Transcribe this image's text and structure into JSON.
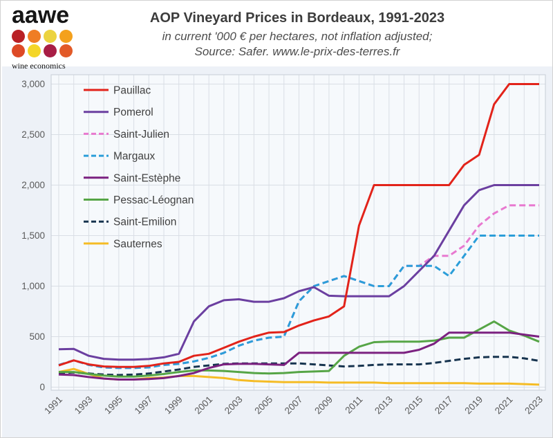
{
  "logo": {
    "text": "aawe",
    "tagline": "wine economics",
    "dot_colors": [
      [
        "#b92025",
        "#ef7d25",
        "#ecd33f",
        "#f4a11d"
      ],
      [
        "#dd4a26",
        "#f4d628",
        "#a81e45",
        "#e25a28"
      ]
    ]
  },
  "header": {
    "title": "AOP Vineyard Prices in Bordeaux, 1991-2023",
    "subtitle_line1": "in current '000 € per hectares, not inflation adjusted;",
    "subtitle_line2": "Source: Safer. www.le-prix-des-terres.fr"
  },
  "chart_data": {
    "type": "line",
    "title": "AOP Vineyard Prices in Bordeaux, 1991-2023",
    "unit": "'000 € per hectare",
    "x": [
      1991,
      1992,
      1993,
      1994,
      1995,
      1996,
      1997,
      1998,
      1999,
      2000,
      2001,
      2002,
      2003,
      2004,
      2005,
      2006,
      2007,
      2008,
      2009,
      2010,
      2011,
      2012,
      2013,
      2014,
      2015,
      2016,
      2017,
      2018,
      2019,
      2020,
      2021,
      2022,
      2023
    ],
    "x_tick_labels": [
      "1991",
      "1993",
      "1995",
      "1997",
      "1999",
      "2001",
      "2003",
      "2005",
      "2007",
      "2009",
      "2011",
      "2013",
      "2015",
      "2017",
      "2019",
      "2021",
      "2023"
    ],
    "ylim": [
      0,
      3000
    ],
    "y_ticks": [
      0,
      500,
      1000,
      1500,
      2000,
      2500,
      3000
    ],
    "y_tick_labels": [
      "0",
      "500",
      "1,000",
      "1,500",
      "2,000",
      "2,500",
      "3,000"
    ],
    "grid": "both",
    "legend_position": "upper-left-inside",
    "colors": {
      "grid": "#d9dee5",
      "plot_border": "#c6cdd6",
      "plot_background": "#f6f9fc",
      "region_background": "#edf1f7",
      "axis_text": "#595959",
      "legend_text": "#404040"
    },
    "series": [
      {
        "name": "Pauillac",
        "color": "#e2231a",
        "style": "solid",
        "values": [
          215,
          265,
          225,
          205,
          200,
          200,
          210,
          235,
          250,
          310,
          330,
          390,
          450,
          500,
          540,
          545,
          610,
          660,
          700,
          800,
          1600,
          2000,
          2000,
          2000,
          2000,
          2000,
          2000,
          2200,
          2300,
          2800,
          3000,
          3000,
          3000
        ]
      },
      {
        "name": "Pomerol",
        "color": "#6b3fa0",
        "style": "solid",
        "values": [
          375,
          378,
          310,
          280,
          272,
          272,
          278,
          295,
          330,
          650,
          800,
          860,
          870,
          845,
          845,
          880,
          950,
          990,
          905,
          900,
          900,
          900,
          900,
          1000,
          1150,
          1300,
          1550,
          1800,
          1950,
          2000,
          2000,
          2000,
          2000
        ]
      },
      {
        "name": "Saint-Julien",
        "color": "#e879d0",
        "style": "dashed",
        "values": [
          220,
          265,
          220,
          195,
          190,
          190,
          195,
          220,
          230,
          255,
          290,
          340,
          410,
          460,
          490,
          500,
          850,
          1000,
          1050,
          1100,
          1050,
          1000,
          1000,
          1200,
          1200,
          1300,
          1300,
          1400,
          1600,
          1720,
          1800,
          1800,
          1800
        ]
      },
      {
        "name": "Margaux",
        "color": "#2b9ed9",
        "style": "dashed",
        "values": [
          220,
          265,
          220,
          195,
          190,
          190,
          195,
          220,
          230,
          255,
          290,
          340,
          410,
          460,
          490,
          500,
          850,
          1000,
          1050,
          1100,
          1050,
          1000,
          1000,
          1200,
          1200,
          1200,
          1100,
          1300,
          1500,
          1500,
          1500,
          1500,
          1500
        ]
      },
      {
        "name": "Saint-Estèphe",
        "color": "#7b2180",
        "style": "solid",
        "values": [
          125,
          120,
          100,
          85,
          75,
          75,
          80,
          90,
          110,
          140,
          190,
          225,
          230,
          230,
          225,
          220,
          340,
          340,
          340,
          340,
          340,
          340,
          340,
          340,
          370,
          430,
          540,
          540,
          540,
          540,
          540,
          520,
          500
        ]
      },
      {
        "name": "Pessac-Léognan",
        "color": "#56a546",
        "style": "solid",
        "values": [
          150,
          150,
          130,
          115,
          105,
          105,
          115,
          130,
          150,
          165,
          165,
          160,
          150,
          140,
          135,
          140,
          150,
          155,
          160,
          310,
          400,
          445,
          450,
          450,
          450,
          460,
          490,
          490,
          570,
          650,
          560,
          510,
          450
        ]
      },
      {
        "name": "Saint-Emilion",
        "color": "#17344f",
        "style": "dashed",
        "values": [
          140,
          145,
          135,
          125,
          120,
          125,
          135,
          155,
          175,
          200,
          215,
          230,
          235,
          235,
          235,
          235,
          235,
          225,
          215,
          205,
          210,
          220,
          225,
          225,
          225,
          240,
          260,
          280,
          295,
          300,
          300,
          285,
          260
        ]
      },
      {
        "name": "Sauternes",
        "color": "#f5bc25",
        "style": "solid",
        "values": [
          150,
          180,
          130,
          85,
          75,
          75,
          90,
          95,
          110,
          110,
          100,
          90,
          70,
          60,
          55,
          50,
          50,
          50,
          45,
          45,
          45,
          45,
          40,
          40,
          40,
          40,
          40,
          40,
          35,
          35,
          35,
          30,
          25
        ]
      }
    ]
  }
}
